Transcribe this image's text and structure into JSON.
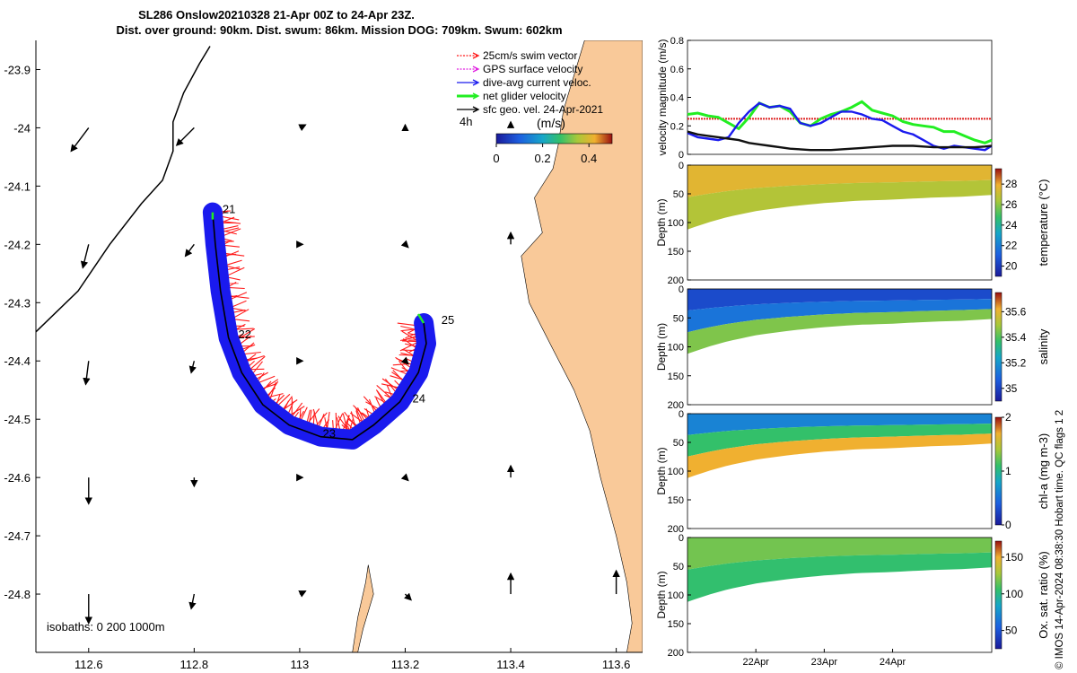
{
  "title": {
    "line1": "SL286 Onslow20210328 21-Apr 00Z to 24-Apr 23Z.",
    "line2": "Dist. over ground: 90km. Dist. swum: 86km. Mission DOG: 709km. Swum: 602km"
  },
  "side_caption": "© IMOS 14-Apr-2024 08:38:30 Hobart time. QC flags 1  2",
  "colors": {
    "land": "#f9c999",
    "swim": "#ff1a1a",
    "gps": "#e020e0",
    "dive": "#1a1aee",
    "net": "#22ee22",
    "sfc": "#000000",
    "ref_line": "#dd2222"
  },
  "chart_data": [
    {
      "type": "map",
      "name": "track-map",
      "xlim": [
        112.5,
        113.65
      ],
      "ylim": [
        -24.9,
        -23.85
      ],
      "xticks": [
        "112.6",
        "112.8",
        "113",
        "113.2",
        "113.4",
        "113.6"
      ],
      "yticks": [
        "-23.9",
        "-24",
        "-24.1",
        "-24.2",
        "-24.3",
        "-24.4",
        "-24.5",
        "-24.6",
        "-24.7",
        "-24.8"
      ],
      "xtick_values": [
        112.6,
        112.8,
        113.0,
        113.2,
        113.4,
        113.6
      ],
      "ytick_values": [
        -23.9,
        -24.0,
        -24.1,
        -24.2,
        -24.3,
        -24.4,
        -24.5,
        -24.6,
        -24.7,
        -24.8
      ],
      "legend": [
        {
          "label": "25cm/s swim vector",
          "color": "#ff1a1a"
        },
        {
          "label": "GPS surface velocity",
          "color": "#e020e0"
        },
        {
          "label": "dive-avg current veloc.",
          "color": "#1a1aee"
        },
        {
          "label": "net glider velocity",
          "color": "#22ee22"
        },
        {
          "label": "sfc geo. vel. 24-Apr-2021",
          "color": "#000000"
        }
      ],
      "colorbar": {
        "label": "(m/s)",
        "period": "4h",
        "ticks": [
          "0",
          "0.2",
          "0.4"
        ],
        "tick_values": [
          0,
          0.2,
          0.4
        ],
        "range": [
          0,
          0.5
        ]
      },
      "isobaths_text": "isobaths: 0   200  1000m",
      "day_labels": [
        {
          "text": "21",
          "lon": 112.84,
          "lat": -24.14
        },
        {
          "text": "22",
          "lon": 112.87,
          "lat": -24.355
        },
        {
          "text": "23",
          "lon": 113.03,
          "lat": -24.525
        },
        {
          "text": "24",
          "lon": 113.2,
          "lat": -24.465
        },
        {
          "text": "25",
          "lon": 113.255,
          "lat": -24.33
        }
      ],
      "track": [
        [
          112.835,
          -24.145
        ],
        [
          112.84,
          -24.2
        ],
        [
          112.85,
          -24.28
        ],
        [
          112.865,
          -24.36
        ],
        [
          112.89,
          -24.42
        ],
        [
          112.93,
          -24.475
        ],
        [
          112.98,
          -24.51
        ],
        [
          113.04,
          -24.53
        ],
        [
          113.1,
          -24.535
        ],
        [
          113.14,
          -24.51
        ],
        [
          113.19,
          -24.47
        ],
        [
          113.225,
          -24.42
        ],
        [
          113.24,
          -24.37
        ],
        [
          113.235,
          -24.335
        ]
      ],
      "isobath_1000m": [
        [
          112.5,
          -24.35
        ],
        [
          112.58,
          -24.28
        ],
        [
          112.64,
          -24.2
        ],
        [
          112.7,
          -24.13
        ],
        [
          112.74,
          -24.09
        ],
        [
          112.76,
          -24.04
        ],
        [
          112.76,
          -23.99
        ],
        [
          112.78,
          -23.94
        ],
        [
          112.81,
          -23.89
        ],
        [
          112.83,
          -23.86
        ]
      ],
      "coast": [
        [
          113.65,
          -23.85
        ],
        [
          113.54,
          -23.85
        ],
        [
          113.5,
          -23.97
        ],
        [
          113.49,
          -24.03
        ],
        [
          113.48,
          -24.07
        ],
        [
          113.445,
          -24.12
        ],
        [
          113.46,
          -24.18
        ],
        [
          113.42,
          -24.22
        ],
        [
          113.435,
          -24.3
        ],
        [
          113.48,
          -24.38
        ],
        [
          113.52,
          -24.45
        ],
        [
          113.55,
          -24.52
        ],
        [
          113.57,
          -24.6
        ],
        [
          113.6,
          -24.7
        ],
        [
          113.62,
          -24.78
        ],
        [
          113.63,
          -24.85
        ],
        [
          113.62,
          -24.9
        ],
        [
          113.65,
          -24.9
        ]
      ],
      "island": [
        [
          113.13,
          -24.75
        ],
        [
          113.14,
          -24.8
        ],
        [
          113.12,
          -24.86
        ],
        [
          113.11,
          -24.9
        ],
        [
          113.1,
          -24.9
        ],
        [
          113.11,
          -24.84
        ],
        [
          113.125,
          -24.78
        ],
        [
          113.13,
          -24.75
        ]
      ],
      "sfc_vectors": [
        {
          "lon": 112.6,
          "lat": -24.0,
          "u": -0.03,
          "v": -0.04
        },
        {
          "lon": 112.8,
          "lat": -24.0,
          "u": -0.03,
          "v": -0.03
        },
        {
          "lon": 113.0,
          "lat": -24.0,
          "u": 0.01,
          "v": 0.005
        },
        {
          "lon": 113.2,
          "lat": -24.0,
          "u": 0.0,
          "v": 0.005
        },
        {
          "lon": 113.4,
          "lat": -24.0,
          "u": 0.0,
          "v": 0.01
        },
        {
          "lon": 112.6,
          "lat": -24.2,
          "u": -0.01,
          "v": -0.04
        },
        {
          "lon": 112.8,
          "lat": -24.2,
          "u": -0.015,
          "v": -0.02
        },
        {
          "lon": 113.0,
          "lat": -24.2,
          "u": 0.005,
          "v": 0.0
        },
        {
          "lon": 113.2,
          "lat": -24.2,
          "u": 0.005,
          "v": -0.005
        },
        {
          "lon": 113.4,
          "lat": -24.2,
          "u": 0.0,
          "v": 0.02
        },
        {
          "lon": 112.6,
          "lat": -24.4,
          "u": -0.005,
          "v": -0.04
        },
        {
          "lon": 112.8,
          "lat": -24.4,
          "u": -0.005,
          "v": -0.02
        },
        {
          "lon": 113.0,
          "lat": -24.4,
          "u": 0.005,
          "v": 0.0
        },
        {
          "lon": 113.2,
          "lat": -24.4,
          "u": 0.005,
          "v": -0.005
        },
        {
          "lon": 112.6,
          "lat": -24.6,
          "u": 0.0,
          "v": -0.045
        },
        {
          "lon": 112.8,
          "lat": -24.6,
          "u": 0.0,
          "v": -0.015
        },
        {
          "lon": 113.0,
          "lat": -24.6,
          "u": 0.005,
          "v": 0.0
        },
        {
          "lon": 113.2,
          "lat": -24.6,
          "u": 0.005,
          "v": -0.005
        },
        {
          "lon": 113.4,
          "lat": -24.6,
          "u": 0.0,
          "v": 0.02
        },
        {
          "lon": 112.6,
          "lat": -24.8,
          "u": 0.0,
          "v": -0.05
        },
        {
          "lon": 112.8,
          "lat": -24.8,
          "u": -0.005,
          "v": -0.025
        },
        {
          "lon": 113.0,
          "lat": -24.8,
          "u": 0.01,
          "v": 0.005
        },
        {
          "lon": 113.2,
          "lat": -24.8,
          "u": 0.01,
          "v": -0.01
        },
        {
          "lon": 113.4,
          "lat": -24.8,
          "u": 0.0,
          "v": 0.035
        },
        {
          "lon": 113.6,
          "lat": -24.8,
          "u": 0.0,
          "v": 0.04
        }
      ]
    },
    {
      "type": "line",
      "name": "velocity-magnitude",
      "ylabel": "velocity magnitude (m/s)",
      "ylim": [
        0,
        0.8
      ],
      "yticks": [
        "0",
        "0.2",
        "0.4",
        "0.6",
        "0.8"
      ],
      "ytick_values": [
        0,
        0.2,
        0.4,
        0.6,
        0.8
      ],
      "xlim": [
        0,
        4.45
      ],
      "x": [
        0,
        0.15,
        0.3,
        0.45,
        0.6,
        0.75,
        0.9,
        1.05,
        1.2,
        1.35,
        1.5,
        1.65,
        1.8,
        1.95,
        2.1,
        2.25,
        2.4,
        2.55,
        2.7,
        2.85,
        3.0,
        3.15,
        3.3,
        3.45,
        3.6,
        3.75,
        3.9,
        4.05,
        4.2,
        4.35,
        4.45
      ],
      "series": [
        {
          "name": "net glider velocity",
          "color": "#22ee22",
          "values": [
            0.28,
            0.29,
            0.27,
            0.26,
            0.22,
            0.18,
            0.26,
            0.36,
            0.33,
            0.34,
            0.3,
            0.22,
            0.2,
            0.25,
            0.28,
            0.3,
            0.33,
            0.37,
            0.31,
            0.29,
            0.27,
            0.23,
            0.21,
            0.2,
            0.19,
            0.16,
            0.16,
            0.13,
            0.1,
            0.08,
            0.1
          ]
        },
        {
          "name": "dive-avg current veloc.",
          "color": "#1a1aee",
          "values": [
            0.15,
            0.12,
            0.11,
            0.1,
            0.12,
            0.22,
            0.3,
            0.36,
            0.33,
            0.34,
            0.32,
            0.22,
            0.2,
            0.22,
            0.26,
            0.3,
            0.3,
            0.28,
            0.25,
            0.24,
            0.2,
            0.16,
            0.14,
            0.1,
            0.06,
            0.04,
            0.06,
            0.05,
            0.04,
            0.03,
            0.06
          ]
        },
        {
          "name": "sfc geo. vel.",
          "color": "#111111",
          "values": [
            0.16,
            0.14,
            0.13,
            0.12,
            0.11,
            0.1,
            0.08,
            0.07,
            0.06,
            0.05,
            0.04,
            0.035,
            0.03,
            0.03,
            0.03,
            0.035,
            0.04,
            0.045,
            0.05,
            0.055,
            0.06,
            0.06,
            0.06,
            0.055,
            0.05,
            0.05,
            0.05,
            0.05,
            0.05,
            0.055,
            0.06
          ]
        }
      ],
      "reference": {
        "name": "25cm/s swim vector",
        "value": 0.25,
        "color": "#dd2222"
      }
    },
    {
      "type": "heatmap",
      "name": "temperature-section",
      "ylabel": "Depth (m)",
      "cbar_label": "temperature (°C)",
      "ylim": [
        0,
        200
      ],
      "yticks": [
        "0",
        "50",
        "100",
        "150",
        "200"
      ],
      "ytick_values": [
        0,
        50,
        100,
        150,
        200
      ],
      "clim": [
        19,
        29.5
      ],
      "cticks": [
        "20",
        "22",
        "24",
        "26",
        "28"
      ],
      "ctick_values": [
        20,
        22,
        24,
        26,
        28
      ],
      "palette": "parula",
      "bottom_depth": [
        [
          0,
          112
        ],
        [
          0.3,
          100
        ],
        [
          0.6,
          90
        ],
        [
          1.0,
          80
        ],
        [
          1.5,
          72
        ],
        [
          2.0,
          66
        ],
        [
          2.5,
          62
        ],
        [
          3.0,
          60
        ],
        [
          3.5,
          57
        ],
        [
          4.0,
          55
        ],
        [
          4.45,
          52
        ]
      ],
      "levels": [
        {
          "value": 27.6
        },
        {
          "value": 26.6,
          "from": 40
        }
      ]
    },
    {
      "type": "heatmap",
      "name": "salinity-section",
      "ylabel": "Depth (m)",
      "cbar_label": "salinity",
      "ylim": [
        0,
        200
      ],
      "yticks": [
        "0",
        "50",
        "100",
        "150",
        "200"
      ],
      "ytick_values": [
        0,
        50,
        100,
        150,
        200
      ],
      "clim": [
        34.9,
        35.75
      ],
      "cticks": [
        "35",
        "35.2",
        "35.4",
        "35.6"
      ],
      "ctick_values": [
        35,
        35.2,
        35.4,
        35.6
      ],
      "palette": "parula",
      "bottom_depth": [
        [
          0,
          112
        ],
        [
          0.3,
          100
        ],
        [
          0.6,
          90
        ],
        [
          1.0,
          80
        ],
        [
          1.5,
          72
        ],
        [
          2.0,
          66
        ],
        [
          2.5,
          62
        ],
        [
          3.0,
          60
        ],
        [
          3.5,
          57
        ],
        [
          4.0,
          55
        ],
        [
          4.45,
          52
        ]
      ],
      "levels": [
        {
          "value": 35.02
        },
        {
          "value": 35.12,
          "from": 45
        },
        {
          "value": 35.45,
          "from": -12
        }
      ]
    },
    {
      "type": "heatmap",
      "name": "chla-section",
      "ylabel": "Depth (m)",
      "cbar_label": "chl-a (mg m-3)",
      "ylim": [
        0,
        200
      ],
      "yticks": [
        "0",
        "50",
        "100",
        "150",
        "200"
      ],
      "ytick_values": [
        0,
        50,
        100,
        150,
        200
      ],
      "clim": [
        0,
        2
      ],
      "cticks": [
        "0",
        "1",
        "2"
      ],
      "ctick_values": [
        0,
        1,
        2
      ],
      "palette": "parula",
      "bottom_depth": [
        [
          0,
          112
        ],
        [
          0.3,
          100
        ],
        [
          0.6,
          90
        ],
        [
          1.0,
          80
        ],
        [
          1.5,
          72
        ],
        [
          2.0,
          66
        ],
        [
          2.5,
          62
        ],
        [
          3.0,
          60
        ],
        [
          3.5,
          57
        ],
        [
          4.0,
          55
        ],
        [
          4.45,
          52
        ]
      ],
      "levels": [
        {
          "value": 0.6
        },
        {
          "value": 1.1,
          "from": 22
        },
        {
          "value": 1.7,
          "from": -8
        }
      ]
    },
    {
      "type": "heatmap",
      "name": "oxygen-section",
      "ylabel": "Depth (m)",
      "cbar_label": "Ox. sat. ratio (%)",
      "ylim": [
        0,
        200
      ],
      "yticks": [
        "0",
        "50",
        "100",
        "150",
        "200"
      ],
      "ytick_values": [
        0,
        50,
        100,
        150,
        200
      ],
      "clim": [
        25,
        172
      ],
      "cticks": [
        "50",
        "100",
        "150"
      ],
      "ctick_values": [
        50,
        100,
        150
      ],
      "palette": "parula",
      "bottom_depth": [
        [
          0,
          112
        ],
        [
          0.3,
          100
        ],
        [
          0.6,
          90
        ],
        [
          1.0,
          80
        ],
        [
          1.5,
          72
        ],
        [
          2.0,
          66
        ],
        [
          2.5,
          62
        ],
        [
          3.0,
          60
        ],
        [
          3.5,
          57
        ],
        [
          4.0,
          55
        ],
        [
          4.45,
          52
        ]
      ],
      "levels": [
        {
          "value": 118
        },
        {
          "value": 105,
          "from": 45
        }
      ]
    }
  ],
  "time_axis": {
    "xlim": [
      0,
      4.45
    ],
    "labels": [
      "22Apr",
      "23Apr",
      "24Apr"
    ],
    "values": [
      1,
      2,
      3
    ]
  }
}
